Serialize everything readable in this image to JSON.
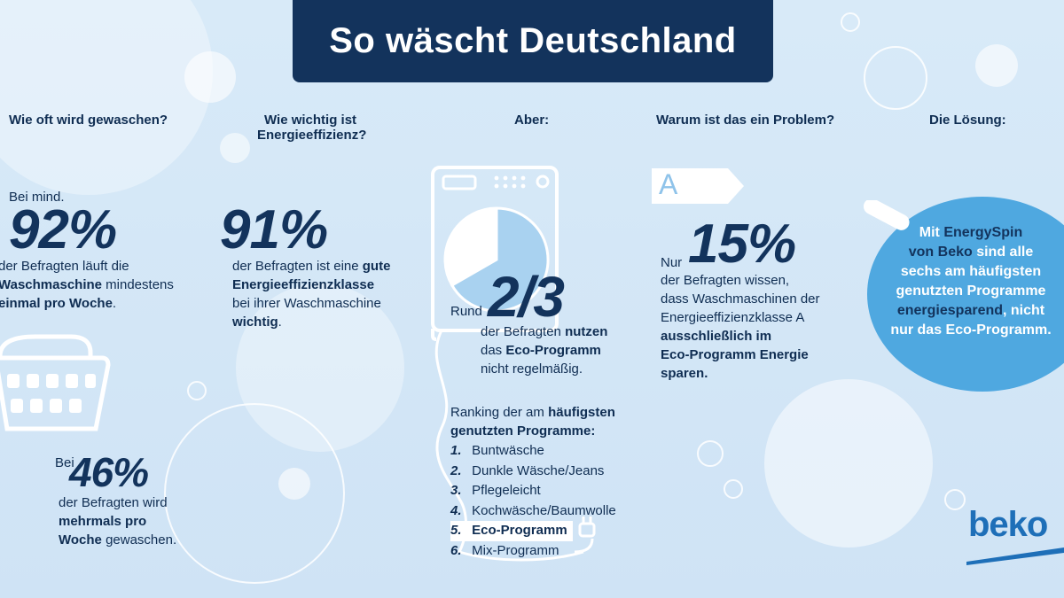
{
  "title": "So wäscht Deutschland",
  "col1": {
    "heading": "Wie oft wird gewaschen?",
    "prefix": "Bei mind.",
    "stat": "92%",
    "line1": "der Befragten läuft die",
    "line2_bold": "Waschmaschine",
    "line2_rest": " mindestens",
    "line3_bold": "einmal pro Woche",
    "line3_rest": ".",
    "prefix2": "Bei",
    "stat2": "46%",
    "line4": "der Befragten wird",
    "line5_bold": "mehrmals pro",
    "line6_bold": "Woche",
    "line6_rest": " gewaschen."
  },
  "col2": {
    "heading_line1": "Wie wichtig ist",
    "heading_line2": "Energieeffizienz?",
    "stat": "91%",
    "line1": "der Befragten ist eine ",
    "line1_bold": "gute",
    "line2_bold": "Energieeffizienzklasse",
    "line3": "bei ihrer Waschmaschine",
    "line4_bold": "wichtig",
    "line4_rest": "."
  },
  "col3": {
    "heading": "Aber:",
    "prefix": "Rund",
    "stat": "2/3",
    "line1": "der Befragten ",
    "line1_bold": "nutzen",
    "line2": "das ",
    "line2_bold": "Eco-Programm",
    "line3": "nicht regelmäßig.",
    "ranking_line1": "Ranking der am ",
    "ranking_line1_bold": "häufigsten",
    "ranking_line2_bold": "genutzten Programme:",
    "ranking": [
      {
        "num": "1.",
        "label": "Buntwäsche"
      },
      {
        "num": "2.",
        "label": "Dunkle Wäsche/Jeans"
      },
      {
        "num": "3.",
        "label": "Pflegeleicht"
      },
      {
        "num": "4.",
        "label": "Kochwäsche/Baumwolle"
      },
      {
        "num": "5.",
        "label": "Eco-Programm"
      },
      {
        "num": "6.",
        "label": "Mix-Programm"
      }
    ],
    "pie": {
      "used_fraction": 0.667
    }
  },
  "col4": {
    "heading": "Warum ist das ein Problem?",
    "label_letter": "A",
    "prefix": "Nur",
    "stat": "15%",
    "line1": "der Befragten wissen,",
    "line2": "dass Waschmaschinen der",
    "line3": "Energieeffizienzklasse A",
    "line4_bold": "ausschließlich im",
    "line5_bold": "Eco-Programm Energie",
    "line6_bold": "sparen."
  },
  "col5": {
    "heading": "Die Lösung:",
    "t1": "Mit ",
    "t1_hl": "EnergySpin",
    "t2_hl": "von Beko",
    "t2": " sind alle",
    "t3": "sechs am häufigsten",
    "t4": "genutzten Programme",
    "t5_hl": "energiesparend",
    "t5": ", nicht",
    "t6": "nur das Eco-Programm."
  },
  "brand": "beko",
  "colors": {
    "navy": "#13335c",
    "light_blue": "#4fa8e0",
    "bg": "#d6e8f7"
  }
}
